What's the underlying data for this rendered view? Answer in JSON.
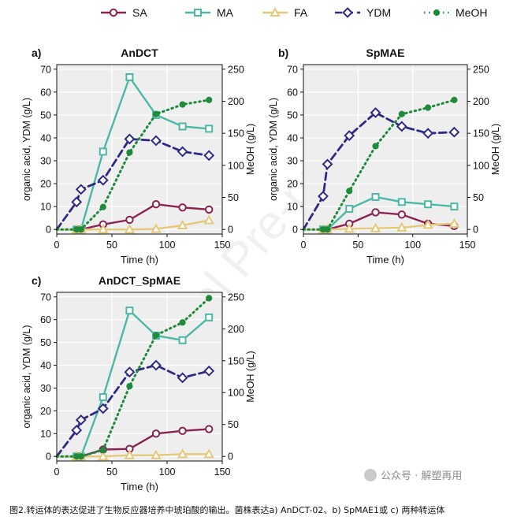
{
  "colors": {
    "SA": "#8b2252",
    "MA": "#4cb8a6",
    "FA": "#e4c97a",
    "YDM": "#2f2a85",
    "MeOH": "#1f8a3b",
    "panel_bg": "#eeeeee"
  },
  "legend": [
    {
      "key": "SA",
      "label": "SA",
      "marker": "circle",
      "dash": "solid"
    },
    {
      "key": "MA",
      "label": "MA",
      "marker": "square",
      "dash": "solid"
    },
    {
      "key": "FA",
      "label": "FA",
      "marker": "triangle",
      "dash": "solid"
    },
    {
      "key": "YDM",
      "label": "YDM",
      "marker": "diamond",
      "dash": "dashed"
    },
    {
      "key": "MeOH",
      "label": "MeOH",
      "marker": "dot",
      "dash": "dotted"
    }
  ],
  "chart_data": [
    {
      "type": "line",
      "panel": "a)",
      "title": "AnDCT",
      "xlabel": "Time (h)",
      "ylabel": "organic acid, YDM (g/L)",
      "y2label": "MeOH (g/L)",
      "xlim": [
        0,
        150
      ],
      "ylim": [
        -2,
        72
      ],
      "y2lim": [
        -7.14,
        257.14
      ],
      "xticks": [
        0,
        50,
        100,
        150
      ],
      "yticks": [
        0,
        10,
        20,
        30,
        40,
        50,
        60,
        70
      ],
      "y2ticks": [
        0,
        50,
        100,
        150,
        200,
        250
      ],
      "x": [
        0,
        18,
        22,
        42,
        66,
        90,
        114,
        138
      ],
      "series": [
        {
          "name": "SA",
          "axis": "left",
          "values": [
            0,
            0,
            0,
            2.2,
            4.2,
            11,
            9.6,
            8.7
          ]
        },
        {
          "name": "MA",
          "axis": "left",
          "values": [
            0,
            0,
            0,
            34,
            66.5,
            50,
            45,
            44
          ]
        },
        {
          "name": "FA",
          "axis": "left",
          "values": [
            0,
            0,
            0,
            0,
            0,
            0.2,
            1.8,
            4
          ]
        },
        {
          "name": "YDM",
          "axis": "left",
          "values": [
            0,
            12,
            17.5,
            21.5,
            39.5,
            38.8,
            34,
            32.3
          ]
        },
        {
          "name": "MeOH",
          "axis": "right",
          "values": [
            0,
            0,
            0,
            35,
            120,
            180,
            195,
            202
          ]
        }
      ]
    },
    {
      "type": "line",
      "panel": "b)",
      "title": "SpMAE",
      "xlabel": "Time (h)",
      "ylabel": "organic acid, YDM (g/L)",
      "y2label": "MeOH (g/L)",
      "xlim": [
        0,
        150
      ],
      "ylim": [
        -2,
        72
      ],
      "y2lim": [
        -7.14,
        257.14
      ],
      "xticks": [
        0,
        50,
        100,
        150
      ],
      "yticks": [
        0,
        10,
        20,
        30,
        40,
        50,
        60,
        70
      ],
      "y2ticks": [
        0,
        50,
        100,
        150,
        200,
        250
      ],
      "x": [
        0,
        18,
        22,
        42,
        66,
        90,
        114,
        138
      ],
      "series": [
        {
          "name": "SA",
          "axis": "left",
          "values": [
            0,
            0,
            0,
            2.5,
            7.5,
            6.5,
            2.5,
            1.5
          ]
        },
        {
          "name": "MA",
          "axis": "left",
          "values": [
            0,
            0,
            0,
            9,
            14.2,
            12,
            11,
            10
          ]
        },
        {
          "name": "FA",
          "axis": "left",
          "values": [
            0,
            0,
            0,
            0.3,
            0.5,
            0.8,
            2,
            2.5
          ]
        },
        {
          "name": "YDM",
          "axis": "left",
          "values": [
            0,
            14.5,
            28.5,
            41,
            51,
            45,
            42,
            42.5
          ]
        },
        {
          "name": "MeOH",
          "axis": "right",
          "values": [
            0,
            0,
            0,
            60,
            130,
            180,
            190,
            202
          ]
        }
      ]
    },
    {
      "type": "line",
      "panel": "c)",
      "title": "AnDCT_SpMAE",
      "xlabel": "Time (h)",
      "ylabel": "organic acid, YDM (g/L)",
      "y2label": "MeOH (g/L)",
      "xlim": [
        0,
        150
      ],
      "ylim": [
        -2,
        72
      ],
      "y2lim": [
        -7.14,
        257.14
      ],
      "xticks": [
        0,
        50,
        100,
        150
      ],
      "yticks": [
        0,
        10,
        20,
        30,
        40,
        50,
        60,
        70
      ],
      "y2ticks": [
        0,
        50,
        100,
        150,
        200,
        250
      ],
      "x": [
        0,
        18,
        22,
        42,
        66,
        90,
        114,
        138
      ],
      "series": [
        {
          "name": "SA",
          "axis": "left",
          "values": [
            0,
            0,
            0,
            3,
            3.3,
            10,
            11.2,
            12
          ]
        },
        {
          "name": "MA",
          "axis": "left",
          "values": [
            0,
            0,
            0,
            26,
            64,
            53,
            51,
            61
          ]
        },
        {
          "name": "FA",
          "axis": "left",
          "values": [
            0,
            0,
            0,
            0,
            0.5,
            0.5,
            1,
            1
          ]
        },
        {
          "name": "YDM",
          "axis": "left",
          "values": [
            0,
            11.5,
            16,
            21,
            37,
            40,
            34.5,
            37.5
          ]
        },
        {
          "name": "MeOH",
          "axis": "right",
          "values": [
            0,
            0,
            0,
            10,
            110,
            190,
            210,
            248
          ]
        }
      ]
    }
  ],
  "watermark": {
    "badge_text": "公众号 · 解塑再用",
    "diagonal_text": "Journal Pre-proofs"
  },
  "caption": "图2.转运体的表达促进了生物反应器培养中琥珀酸的输出。菌株表达a) AnDCT-02、b) SpMAE1或 c) 两种转运体"
}
